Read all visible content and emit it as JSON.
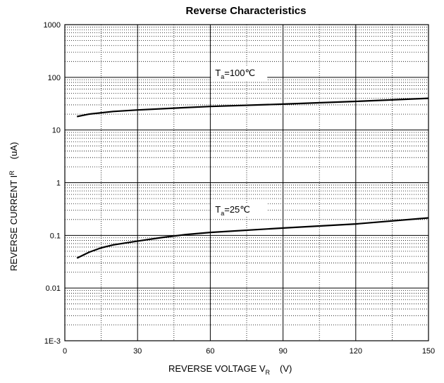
{
  "chart_data": {
    "type": "line",
    "title": "Reverse Characteristics",
    "xlabel": {
      "main": "REVERSE VOLTAGE   V",
      "sub": "R",
      "unit": "(V)"
    },
    "ylabel": {
      "main": "REVERSE CURRENT   I",
      "sub": "R",
      "unit": "(uA)"
    },
    "xlim": [
      0,
      150
    ],
    "ylim": [
      0.001,
      1000
    ],
    "yscale": "log",
    "x_ticks": [
      0,
      30,
      60,
      90,
      120,
      150
    ],
    "x_tick_labels": [
      "0",
      "30",
      "60",
      "90",
      "120",
      "150"
    ],
    "y_ticks": [
      0.001,
      0.01,
      0.1,
      1,
      10,
      100,
      1000
    ],
    "y_tick_labels": [
      "1E-3",
      "0.01",
      "0.1",
      "1",
      "10",
      "100",
      "1000"
    ],
    "grid": true,
    "series": [
      {
        "name": "T=100℃",
        "label_main": "T",
        "label_sub": "a",
        "label_rest": "=100℃",
        "x": [
          5,
          10,
          20,
          30,
          45,
          60,
          90,
          120,
          150
        ],
        "y": [
          18,
          20,
          22.5,
          24,
          26,
          28,
          31,
          35,
          40
        ]
      },
      {
        "name": "T=25℃",
        "label_main": "T",
        "label_sub": "a",
        "label_rest": "=25℃",
        "x": [
          5,
          10,
          15,
          20,
          30,
          40,
          50,
          60,
          90,
          120,
          150
        ],
        "y": [
          0.037,
          0.048,
          0.058,
          0.066,
          0.078,
          0.091,
          0.104,
          0.114,
          0.138,
          0.165,
          0.215
        ]
      }
    ]
  }
}
